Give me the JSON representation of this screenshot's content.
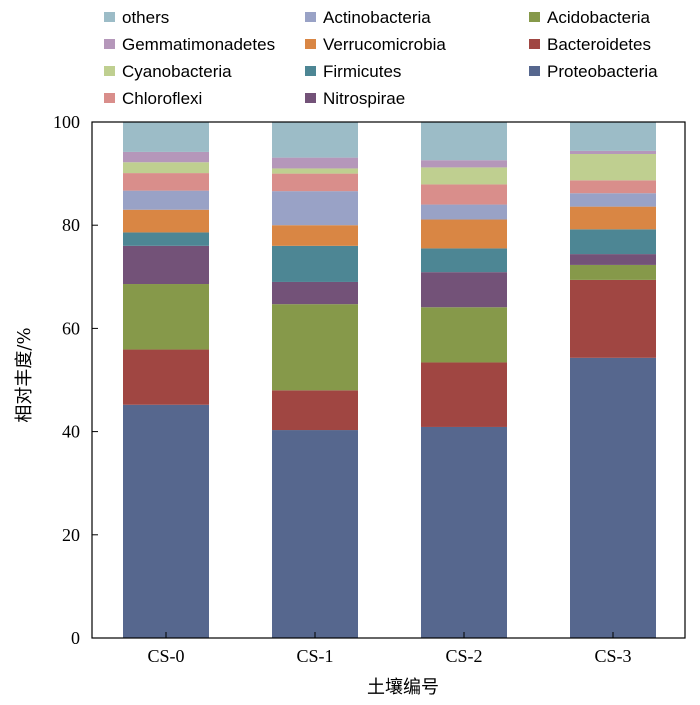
{
  "chart_data": {
    "type": "bar",
    "stacked": true,
    "xlabel": "土壤编号",
    "ylabel": "相对丰度/%",
    "ylim": [
      0,
      100
    ],
    "yticks": [
      0,
      20,
      40,
      60,
      80,
      100
    ],
    "categories": [
      "CS-0",
      "CS-1",
      "CS-2",
      "CS-3"
    ],
    "legend_position": "top",
    "legend_order": [
      "others",
      "Actinobacteria",
      "Acidobacteria",
      "Gemmatimonadetes",
      "Verrucomicrobia",
      "Bacteroidetes",
      "Cyanobacteria",
      "Firmicutes",
      "Proteobacteria",
      "Chloroflexi",
      "Nitrospirae"
    ],
    "series": [
      {
        "name": "Proteobacteria",
        "color": "#56678e",
        "values": [
          45.2,
          40.3,
          40.9,
          54.3
        ]
      },
      {
        "name": "Bacteroidetes",
        "color": "#a04642",
        "values": [
          10.7,
          7.7,
          12.5,
          15.1
        ]
      },
      {
        "name": "Acidobacteria",
        "color": "#86994a",
        "values": [
          12.7,
          16.7,
          10.7,
          2.9
        ]
      },
      {
        "name": "Nitrospirae",
        "color": "#735278",
        "values": [
          7.4,
          4.3,
          6.8,
          2.1
        ]
      },
      {
        "name": "Firmicutes",
        "color": "#4d8694",
        "values": [
          2.6,
          7.0,
          4.6,
          4.8
        ]
      },
      {
        "name": "Verrucomicrobia",
        "color": "#d98644",
        "values": [
          4.4,
          4.0,
          5.6,
          4.4
        ]
      },
      {
        "name": "Actinobacteria",
        "color": "#99a2c6",
        "values": [
          3.7,
          6.6,
          2.9,
          2.6
        ]
      },
      {
        "name": "Chloroflexi",
        "color": "#d98e8b",
        "values": [
          3.4,
          3.4,
          3.9,
          2.5
        ]
      },
      {
        "name": "Cyanobacteria",
        "color": "#bfcf90",
        "values": [
          2.1,
          1.0,
          3.3,
          5.1
        ]
      },
      {
        "name": "Gemmatimonadetes",
        "color": "#b597ba",
        "values": [
          2.0,
          2.1,
          1.4,
          0.6
        ]
      },
      {
        "name": "others",
        "color": "#9cbcc7",
        "values": [
          5.8,
          6.9,
          7.4,
          5.6
        ]
      }
    ]
  }
}
